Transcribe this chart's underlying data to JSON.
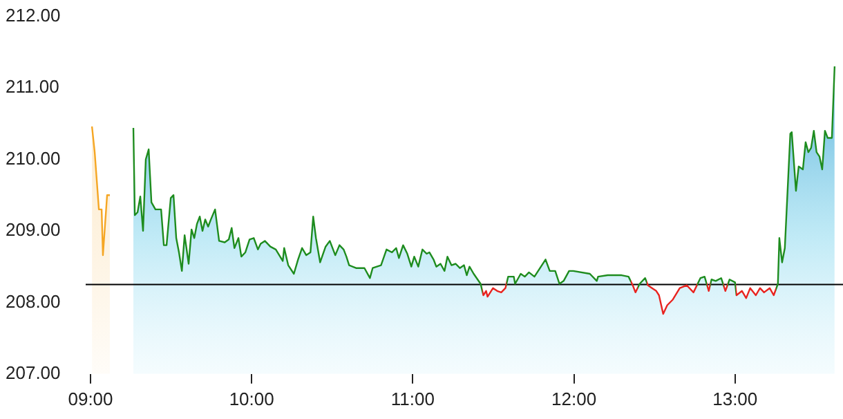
{
  "chart_data": {
    "type": "area",
    "xlim": [
      8.97,
      13.67
    ],
    "xticks": [
      {
        "value": 9,
        "label": "09:00"
      },
      {
        "value": 10,
        "label": "10:00"
      },
      {
        "value": 11,
        "label": "11:00"
      },
      {
        "value": 12,
        "label": "12:00"
      },
      {
        "value": 13,
        "label": "13:00"
      }
    ],
    "ylim": [
      207,
      212
    ],
    "yticks": [
      {
        "value": 207,
        "label": "207.00"
      },
      {
        "value": 208,
        "label": "208.00"
      },
      {
        "value": 209,
        "label": "209.00"
      },
      {
        "value": 210,
        "label": "210.00"
      },
      {
        "value": 211,
        "label": "211.00"
      },
      {
        "value": 212,
        "label": "212.00"
      }
    ],
    "legend": false,
    "marker": "none",
    "ref_lines": [
      {
        "axis": "y",
        "value": 208.25,
        "color": "#000000"
      }
    ],
    "series": [
      {
        "color": "#f5a623",
        "x": [
          9.009,
          9.026,
          9.052,
          9.069,
          9.077,
          9.103,
          9.12
        ],
        "values": [
          210.46,
          210.1,
          209.3,
          209.3,
          208.66,
          209.5,
          209.5
        ]
      },
      {
        "color": "#1e8c1e",
        "x": [
          9.266,
          9.275,
          9.292,
          9.309,
          9.326,
          9.343,
          9.361,
          9.378,
          9.403,
          9.438,
          9.455,
          9.472,
          9.498,
          9.515,
          9.532,
          9.549,
          9.567,
          9.584,
          9.609,
          9.627,
          9.644,
          9.661,
          9.678,
          9.695,
          9.712,
          9.73,
          9.747,
          9.773,
          9.798,
          9.833,
          9.858,
          9.876,
          9.893,
          9.918,
          9.936,
          9.961,
          9.987,
          10.013,
          10.039,
          10.056,
          10.082,
          10.116,
          10.15,
          10.193,
          10.202,
          10.227,
          10.262,
          10.288,
          10.313,
          10.339,
          10.365,
          10.382,
          10.399,
          10.425,
          10.459,
          10.485,
          10.519,
          10.545,
          10.571,
          10.588,
          10.605,
          10.648,
          10.7,
          10.734,
          10.751,
          10.803,
          10.837,
          10.871,
          10.897,
          10.914,
          10.94,
          10.966,
          10.991,
          11.009,
          11.034,
          11.06,
          11.086,
          11.103,
          11.129,
          11.146,
          11.172,
          11.197,
          11.215,
          11.24,
          11.266,
          11.292,
          11.318,
          11.335,
          11.352,
          11.378,
          11.421,
          11.438,
          11.455,
          11.464,
          11.498,
          11.524,
          11.549,
          11.575,
          11.592,
          11.627,
          11.635,
          11.67,
          11.695,
          11.721,
          11.755,
          11.824,
          11.85,
          11.884,
          11.91,
          11.936,
          11.97,
          11.996,
          12.099,
          12.142,
          12.15,
          12.21,
          12.296,
          12.339,
          12.365,
          12.382,
          12.408,
          12.442,
          12.459,
          12.485,
          12.511,
          12.528,
          12.554,
          12.579,
          12.614,
          12.657,
          12.7,
          12.742,
          12.785,
          12.811,
          12.837,
          12.854,
          12.88,
          12.914,
          12.94,
          12.966,
          13.0,
          13.009,
          13.043,
          13.069,
          13.094,
          13.129,
          13.155,
          13.18,
          13.215,
          13.24,
          13.266,
          13.275,
          13.292,
          13.309,
          13.343,
          13.352,
          13.378,
          13.395,
          13.421,
          13.438,
          13.455,
          13.472,
          13.489,
          13.506,
          13.524,
          13.541,
          13.558,
          13.575,
          13.601,
          13.618
        ],
        "values": [
          210.44,
          209.22,
          209.26,
          209.48,
          209.0,
          210.0,
          210.14,
          209.4,
          209.3,
          209.3,
          208.8,
          208.8,
          209.46,
          209.5,
          208.9,
          208.7,
          208.44,
          208.94,
          208.54,
          209.02,
          208.9,
          209.1,
          209.2,
          209.0,
          209.16,
          209.06,
          209.16,
          209.3,
          208.86,
          208.84,
          208.88,
          209.04,
          208.76,
          208.9,
          208.64,
          208.7,
          208.88,
          208.9,
          208.74,
          208.82,
          208.86,
          208.78,
          208.74,
          208.58,
          208.76,
          208.52,
          208.4,
          208.6,
          208.76,
          208.66,
          208.7,
          209.2,
          208.9,
          208.56,
          208.78,
          208.86,
          208.66,
          208.8,
          208.74,
          208.64,
          208.52,
          208.48,
          208.48,
          208.34,
          208.48,
          208.52,
          208.74,
          208.7,
          208.76,
          208.62,
          208.8,
          208.68,
          208.5,
          208.64,
          208.5,
          208.74,
          208.68,
          208.7,
          208.6,
          208.5,
          208.54,
          208.44,
          208.64,
          208.52,
          208.54,
          208.48,
          208.52,
          208.38,
          208.5,
          208.4,
          208.26,
          208.1,
          208.16,
          208.08,
          208.2,
          208.16,
          208.14,
          208.2,
          208.36,
          208.36,
          208.26,
          208.4,
          208.36,
          208.42,
          208.36,
          208.6,
          208.44,
          208.44,
          208.26,
          208.3,
          208.44,
          208.44,
          208.4,
          208.3,
          208.36,
          208.38,
          208.38,
          208.36,
          208.24,
          208.14,
          208.26,
          208.34,
          208.24,
          208.2,
          208.16,
          208.1,
          207.84,
          207.96,
          208.04,
          208.2,
          208.24,
          208.14,
          208.34,
          208.36,
          208.16,
          208.32,
          208.3,
          208.34,
          208.16,
          208.32,
          208.28,
          208.1,
          208.16,
          208.06,
          208.2,
          208.1,
          208.2,
          208.14,
          208.2,
          208.1,
          208.26,
          208.9,
          208.56,
          208.76,
          210.36,
          210.38,
          209.56,
          209.9,
          209.86,
          210.24,
          210.1,
          210.16,
          210.4,
          210.1,
          210.04,
          209.86,
          210.4,
          210.3,
          210.3,
          211.3
        ],
        "colors": [
          "#1e8c1e",
          "#1e8c1e",
          "#1e8c1e",
          "#1e8c1e",
          "#1e8c1e",
          "#1e8c1e",
          "#1e8c1e",
          "#1e8c1e",
          "#1e8c1e",
          "#1e8c1e",
          "#1e8c1e",
          "#1e8c1e",
          "#1e8c1e",
          "#1e8c1e",
          "#1e8c1e",
          "#1e8c1e",
          "#1e8c1e",
          "#1e8c1e",
          "#1e8c1e",
          "#1e8c1e",
          "#1e8c1e",
          "#1e8c1e",
          "#1e8c1e",
          "#1e8c1e",
          "#1e8c1e",
          "#1e8c1e",
          "#1e8c1e",
          "#1e8c1e",
          "#1e8c1e",
          "#1e8c1e",
          "#1e8c1e",
          "#1e8c1e",
          "#1e8c1e",
          "#1e8c1e",
          "#1e8c1e",
          "#1e8c1e",
          "#1e8c1e",
          "#1e8c1e",
          "#1e8c1e",
          "#1e8c1e",
          "#1e8c1e",
          "#1e8c1e",
          "#1e8c1e",
          "#1e8c1e",
          "#1e8c1e",
          "#1e8c1e",
          "#1e8c1e",
          "#1e8c1e",
          "#1e8c1e",
          "#1e8c1e",
          "#1e8c1e",
          "#1e8c1e",
          "#1e8c1e",
          "#1e8c1e",
          "#1e8c1e",
          "#1e8c1e",
          "#1e8c1e",
          "#1e8c1e",
          "#1e8c1e",
          "#1e8c1e",
          "#1e8c1e",
          "#1e8c1e",
          "#1e8c1e",
          "#1e8c1e",
          "#1e8c1e",
          "#1e8c1e",
          "#1e8c1e",
          "#1e8c1e",
          "#1e8c1e",
          "#1e8c1e",
          "#1e8c1e",
          "#1e8c1e",
          "#1e8c1e",
          "#1e8c1e",
          "#1e8c1e",
          "#1e8c1e",
          "#1e8c1e",
          "#1e8c1e",
          "#1e8c1e",
          "#1e8c1e",
          "#1e8c1e",
          "#1e8c1e",
          "#1e8c1e",
          "#1e8c1e",
          "#1e8c1e",
          "#1e8c1e",
          "#1e8c1e",
          "#1e8c1e",
          "#1e8c1e",
          "#1e8c1e",
          "#1e8c1e",
          "#e8231f",
          "#e8231f",
          "#e8231f",
          "#e8231f",
          "#e8231f",
          "#e8231f",
          "#e8231f",
          "#1e8c1e",
          "#1e8c1e",
          "#1e8c1e",
          "#1e8c1e",
          "#1e8c1e",
          "#1e8c1e",
          "#1e8c1e",
          "#1e8c1e",
          "#1e8c1e",
          "#1e8c1e",
          "#1e8c1e",
          "#1e8c1e",
          "#1e8c1e",
          "#1e8c1e",
          "#1e8c1e",
          "#1e8c1e",
          "#1e8c1e",
          "#1e8c1e",
          "#1e8c1e",
          "#1e8c1e",
          "#e8231f",
          "#e8231f",
          "#1e8c1e",
          "#1e8c1e",
          "#e8231f",
          "#e8231f",
          "#e8231f",
          "#e8231f",
          "#e8231f",
          "#e8231f",
          "#e8231f",
          "#e8231f",
          "#e8231f",
          "#e8231f",
          "#1e8c1e",
          "#1e8c1e",
          "#e8231f",
          "#1e8c1e",
          "#1e8c1e",
          "#1e8c1e",
          "#e8231f",
          "#1e8c1e",
          "#1e8c1e",
          "#e8231f",
          "#e8231f",
          "#e8231f",
          "#e8231f",
          "#e8231f",
          "#e8231f",
          "#e8231f",
          "#e8231f",
          "#e8231f",
          "#1e8c1e",
          "#1e8c1e",
          "#1e8c1e",
          "#1e8c1e",
          "#1e8c1e",
          "#1e8c1e",
          "#1e8c1e",
          "#1e8c1e",
          "#1e8c1e",
          "#1e8c1e",
          "#1e8c1e",
          "#1e8c1e",
          "#1e8c1e",
          "#1e8c1e",
          "#1e8c1e",
          "#1e8c1e",
          "#1e8c1e",
          "#1e8c1e",
          "#1e8c1e",
          "#1e8c1e"
        ]
      }
    ]
  }
}
